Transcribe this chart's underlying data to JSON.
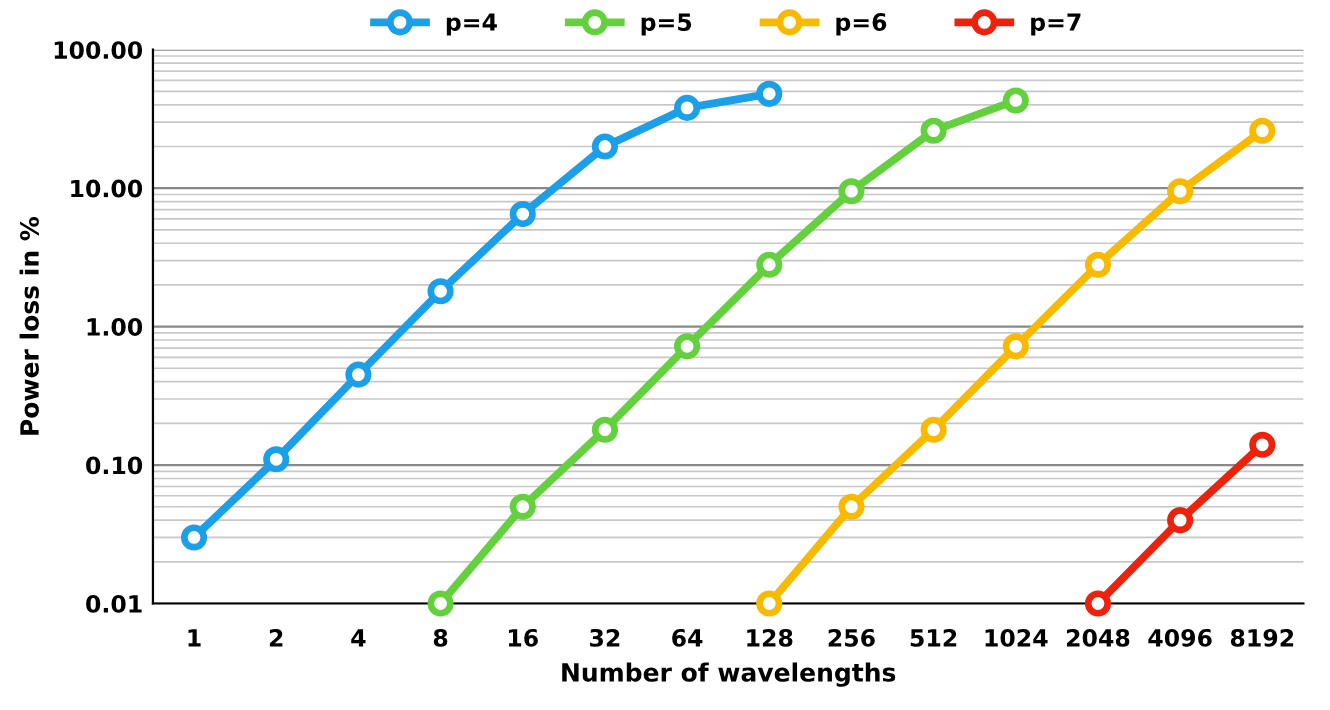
{
  "chart_data": {
    "type": "line",
    "xlabel": "Number of wavelengths",
    "ylabel": "Power loss in %",
    "categories": [
      "1",
      "2",
      "4",
      "8",
      "16",
      "32",
      "64",
      "128",
      "256",
      "512",
      "1024",
      "2048",
      "4096",
      "8192"
    ],
    "log": "y",
    "ylim": [
      0.01,
      100
    ],
    "yticks": [
      {
        "value": 0.01,
        "label": "0.01"
      },
      {
        "value": 0.1,
        "label": "0.10"
      },
      {
        "value": 1,
        "label": "1.00"
      },
      {
        "value": 10,
        "label": "10.00"
      },
      {
        "value": 100,
        "label": "100.00"
      }
    ],
    "grid": "y",
    "legend": "top",
    "marker": "circle",
    "line_style": "solid",
    "series": [
      {
        "name": "p=4",
        "color": "#1a9fe8",
        "values": [
          0.03,
          0.11,
          0.45,
          1.8,
          6.5,
          20,
          38,
          48,
          null,
          null,
          null,
          null,
          null,
          null
        ]
      },
      {
        "name": "p=5",
        "color": "#63d13e",
        "values": [
          null,
          null,
          null,
          0.01,
          0.05,
          0.18,
          0.72,
          2.8,
          9.5,
          26,
          43,
          null,
          null,
          null
        ]
      },
      {
        "name": "p=6",
        "color": "#f8ba00",
        "values": [
          null,
          null,
          null,
          null,
          null,
          null,
          null,
          0.01,
          0.05,
          0.18,
          0.72,
          2.8,
          9.5,
          26
        ]
      },
      {
        "name": "p=7",
        "color": "#ee220c",
        "values": [
          null,
          null,
          null,
          null,
          null,
          null,
          null,
          null,
          null,
          null,
          null,
          0.01,
          0.04,
          0.14
        ]
      }
    ]
  }
}
